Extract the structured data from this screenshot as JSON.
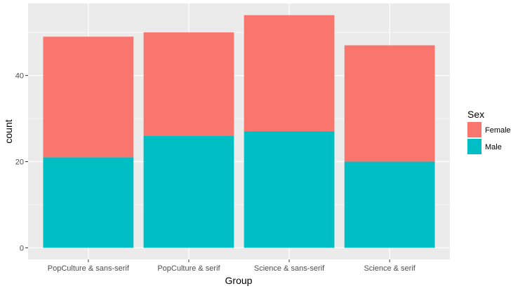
{
  "chart_data": {
    "type": "bar",
    "stacked": true,
    "categories": [
      "PopCulture & sans-serif",
      "PopCulture & serif",
      "Science & sans-serif",
      "Science & serif"
    ],
    "series": [
      {
        "name": "Female",
        "values": [
          28,
          24,
          27,
          27
        ],
        "color": "#f8766d"
      },
      {
        "name": "Male",
        "values": [
          21,
          26,
          27,
          20
        ],
        "color": "#00bfc4"
      }
    ],
    "totals": [
      49,
      50,
      54,
      47
    ],
    "xlabel": "Group",
    "ylabel": "count",
    "ylim": [
      -2.7,
      56.7
    ],
    "yticks": [
      0,
      20,
      40
    ],
    "grid": true,
    "legend": {
      "title": "Sex",
      "position": "right"
    },
    "panel_background": "#ebebeb",
    "grid_color": "#ffffff"
  }
}
